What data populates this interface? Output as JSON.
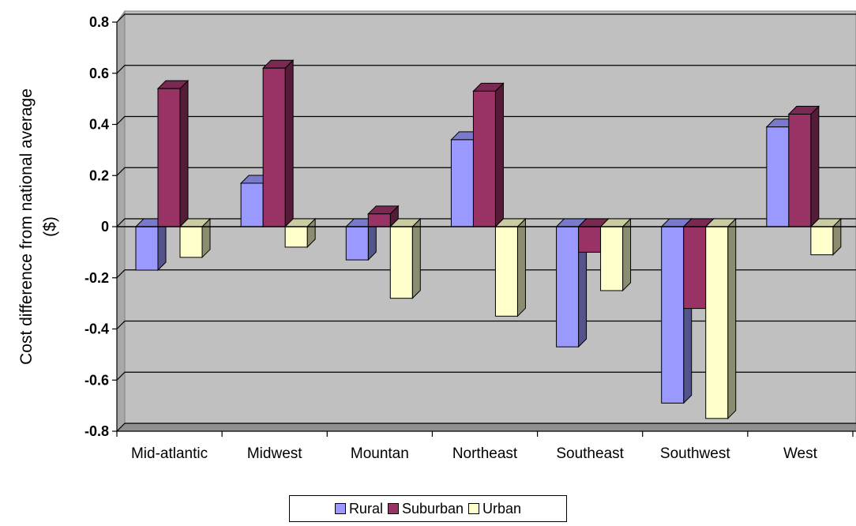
{
  "chart_data": {
    "type": "bar",
    "title": "",
    "xlabel": "",
    "ylabel": "Cost difference from national average ($)",
    "ylabel_lines": [
      "Cost difference from national average",
      "($)"
    ],
    "categories": [
      "Mid-atlantic",
      "Midwest",
      "Mountan",
      "Northeast",
      "Southeast",
      "Southwest",
      "West"
    ],
    "series": [
      {
        "name": "Rural",
        "color": "#9999FF",
        "values": [
          -0.17,
          0.17,
          -0.13,
          0.34,
          -0.47,
          -0.69,
          0.39
        ]
      },
      {
        "name": "Suburban",
        "color": "#993366",
        "values": [
          0.54,
          0.62,
          0.05,
          0.53,
          -0.1,
          -0.32,
          0.44
        ]
      },
      {
        "name": "Urban",
        "color": "#FFFFCC",
        "values": [
          -0.12,
          -0.08,
          -0.28,
          -0.35,
          -0.25,
          -0.75,
          -0.11
        ]
      }
    ],
    "ylim": [
      -0.8,
      0.8
    ],
    "yticks": [
      "0.8",
      "0.6",
      "0.4",
      "0.2",
      "0",
      "-0.2",
      "-0.4",
      "-0.6",
      "-0.8"
    ],
    "grid": true,
    "legend_position": "bottom",
    "style": "3d-clustered-column",
    "wall_color": "#C0C0C0"
  }
}
